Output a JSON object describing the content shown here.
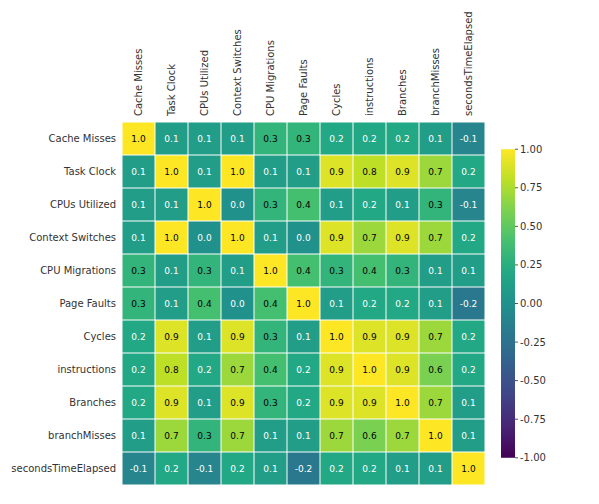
{
  "chart_data": {
    "type": "heatmap",
    "categories": [
      "Cache Misses",
      "Task Clock",
      "CPUs Utilized",
      "Context Switches",
      "CPU Migrations",
      "Page Faults",
      "Cycles",
      "instructions",
      "Branches",
      "branchMisses",
      "secondsTimeElapsed"
    ],
    "values": [
      [
        1.0,
        0.1,
        0.1,
        0.1,
        0.3,
        0.3,
        0.2,
        0.2,
        0.2,
        0.1,
        -0.1
      ],
      [
        0.1,
        1.0,
        0.1,
        1.0,
        0.1,
        0.1,
        0.9,
        0.8,
        0.9,
        0.7,
        0.2
      ],
      [
        0.1,
        0.1,
        1.0,
        0.0,
        0.3,
        0.4,
        0.1,
        0.2,
        0.1,
        0.3,
        -0.1
      ],
      [
        0.1,
        1.0,
        0.0,
        1.0,
        0.1,
        0.0,
        0.9,
        0.7,
        0.9,
        0.7,
        0.2
      ],
      [
        0.3,
        0.1,
        0.3,
        0.1,
        1.0,
        0.4,
        0.3,
        0.4,
        0.3,
        0.1,
        0.1
      ],
      [
        0.3,
        0.1,
        0.4,
        0.0,
        0.4,
        1.0,
        0.1,
        0.2,
        0.2,
        0.1,
        -0.2
      ],
      [
        0.2,
        0.9,
        0.1,
        0.9,
        0.3,
        0.1,
        1.0,
        0.9,
        0.9,
        0.7,
        0.2
      ],
      [
        0.2,
        0.8,
        0.2,
        0.7,
        0.4,
        0.2,
        0.9,
        1.0,
        0.9,
        0.6,
        0.2
      ],
      [
        0.2,
        0.9,
        0.1,
        0.9,
        0.3,
        0.2,
        0.9,
        0.9,
        1.0,
        0.7,
        0.1
      ],
      [
        0.1,
        0.7,
        0.3,
        0.7,
        0.1,
        0.1,
        0.7,
        0.6,
        0.7,
        1.0,
        0.1
      ],
      [
        -0.1,
        0.2,
        -0.1,
        0.2,
        0.1,
        -0.2,
        0.2,
        0.2,
        0.1,
        0.1,
        1.0
      ]
    ],
    "value_labels": [
      [
        "1.0",
        "0.1",
        "0.1",
        "0.1",
        "0.3",
        "0.3",
        "0.2",
        "0.2",
        "0.2",
        "0.1",
        "-0.1"
      ],
      [
        "0.1",
        "1.0",
        "0.1",
        "1.0",
        "0.1",
        "0.1",
        "0.9",
        "0.8",
        "0.9",
        "0.7",
        "0.2"
      ],
      [
        "0.1",
        "0.1",
        "1.0",
        "0.0",
        "0.3",
        "0.4",
        "0.1",
        "0.2",
        "0.1",
        "0.3",
        "-0.1"
      ],
      [
        "0.1",
        "1.0",
        "0.0",
        "1.0",
        "0.1",
        "0.0",
        "0.9",
        "0.7",
        "0.9",
        "0.7",
        "0.2"
      ],
      [
        "0.3",
        "0.1",
        "0.3",
        "0.1",
        "1.0",
        "0.4",
        "0.3",
        "0.4",
        "0.3",
        "0.1",
        "0.1"
      ],
      [
        "0.3",
        "0.1",
        "0.4",
        "0.0",
        "0.4",
        "1.0",
        "0.1",
        "0.2",
        "0.2",
        "0.1",
        "-0.2"
      ],
      [
        "0.2",
        "0.9",
        "0.1",
        "0.9",
        "0.3",
        "0.1",
        "1.0",
        "0.9",
        "0.9",
        "0.7",
        "0.2"
      ],
      [
        "0.2",
        "0.8",
        "0.2",
        "0.7",
        "0.4",
        "0.2",
        "0.9",
        "1.0",
        "0.9",
        "0.6",
        "0.2"
      ],
      [
        "0.2",
        "0.9",
        "0.1",
        "0.9",
        "0.3",
        "0.2",
        "0.9",
        "0.9",
        "1.0",
        "0.7",
        "0.1"
      ],
      [
        "0.1",
        "0.7",
        "0.3",
        "0.7",
        "0.1",
        "0.1",
        "0.7",
        "0.6",
        "0.7",
        "1.0",
        "0.1"
      ],
      [
        "-0.1",
        "0.2",
        "-0.1",
        "0.2",
        "0.1",
        "-0.2",
        "0.2",
        "0.2",
        "0.1",
        "0.1",
        "1.0"
      ]
    ],
    "data_labels": true,
    "grid": true,
    "zlim": [
      -1.0,
      1.0
    ],
    "zticks": [
      {
        "value": 1.0,
        "label": "1.00"
      },
      {
        "value": 0.75,
        "label": "0.75"
      },
      {
        "value": 0.5,
        "label": "0.50"
      },
      {
        "value": 0.25,
        "label": "0.25"
      },
      {
        "value": 0.0,
        "label": "0.00"
      },
      {
        "value": -0.25,
        "label": "-0.25"
      },
      {
        "value": -0.5,
        "label": "-0.50"
      },
      {
        "value": -0.75,
        "label": "-0.75"
      },
      {
        "value": -1.0,
        "label": "-1.00"
      }
    ]
  }
}
